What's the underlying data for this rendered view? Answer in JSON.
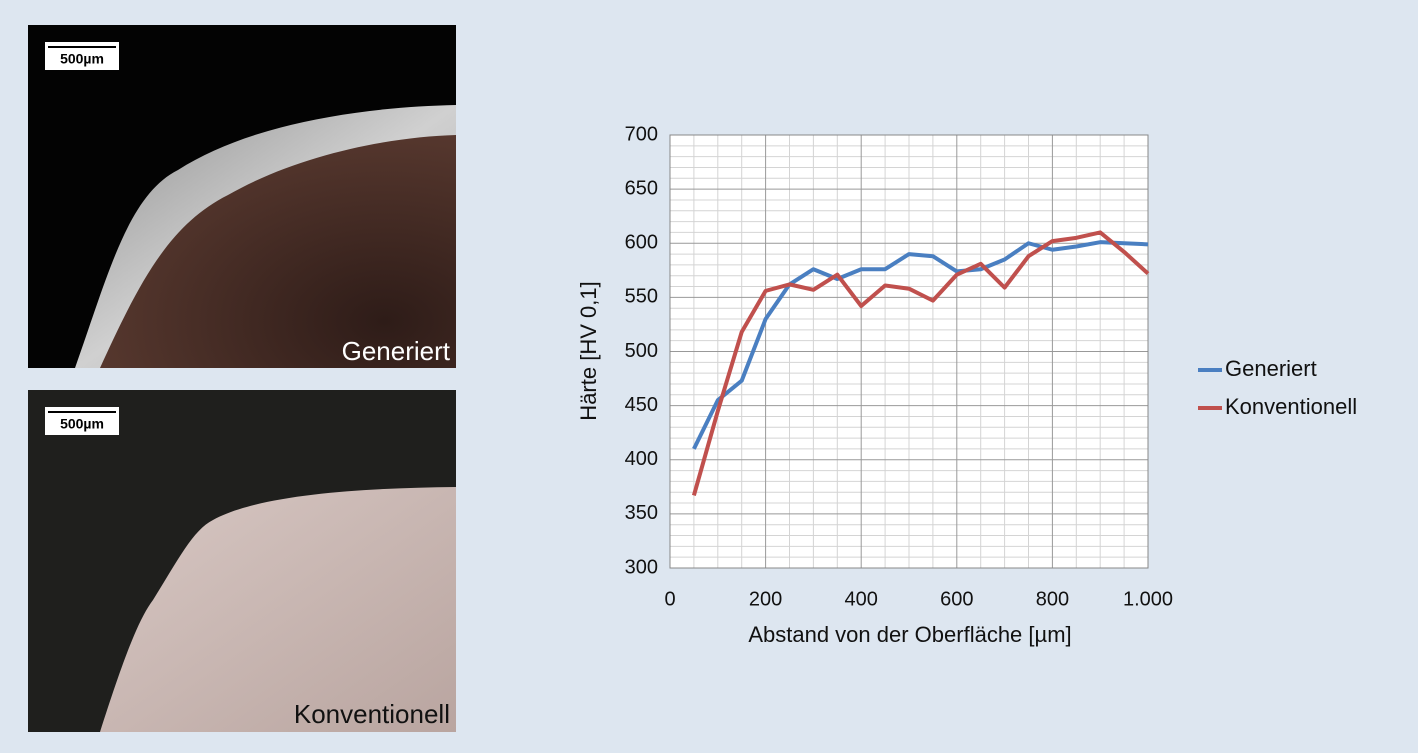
{
  "images": [
    {
      "label": "Generiert",
      "scale": "500µm"
    },
    {
      "label": "Konventionell",
      "scale": "500µm"
    }
  ],
  "chart_data": {
    "type": "line",
    "x": [
      50,
      100,
      150,
      200,
      250,
      300,
      350,
      400,
      450,
      500,
      550,
      600,
      650,
      700,
      750,
      800,
      850,
      900,
      950,
      1000
    ],
    "series": [
      {
        "name": "Generiert",
        "color": "#4a7fc1",
        "values": [
          410,
          455,
          473,
          530,
          562,
          576,
          567,
          576,
          576,
          590,
          588,
          574,
          576,
          585,
          600,
          594,
          597,
          601,
          600,
          599
        ]
      },
      {
        "name": "Konventionell",
        "color": "#c0504d",
        "values": [
          367,
          445,
          518,
          556,
          562,
          557,
          571,
          542,
          561,
          558,
          547,
          571,
          581,
          559,
          588,
          602,
          605,
          610,
          592,
          572
        ]
      }
    ],
    "xlabel": "Abstand von der Oberfläche [µm]",
    "ylabel": "Härte [HV 0,1]",
    "xlim": [
      0,
      1000
    ],
    "xticks": [
      0,
      200,
      400,
      600,
      800,
      {
        "value": 1000,
        "label": "1.000"
      }
    ],
    "ylim": [
      300,
      700
    ],
    "yticks": [
      300,
      350,
      400,
      450,
      500,
      550,
      600,
      650,
      700
    ],
    "grid": true,
    "legend": "right"
  }
}
